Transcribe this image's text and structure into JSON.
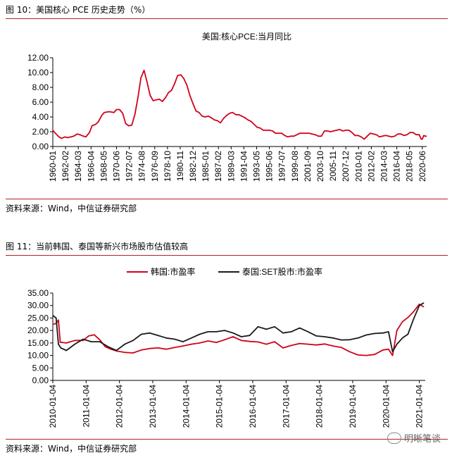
{
  "fig10": {
    "header": "图 10：美国核心 PCE 历史走势（%）",
    "source": "资料来源：Wind，中信证券研究部"
  },
  "fig11": {
    "header": "图 11：当前韩国、泰国等新兴市场股市估值较高",
    "source": "资料来源：Wind，中信证券研究部"
  },
  "watermark": "明晰笔谈",
  "colors": {
    "red": "#d0021b",
    "black": "#1a1a1a",
    "rule": "#b22222"
  },
  "chart_data": [
    {
      "type": "line",
      "title": "美国:核心PCE:当月同比",
      "xlabel": "",
      "ylabel": "",
      "ylim": [
        0,
        12
      ],
      "yticks": [
        "0.00",
        "2.00",
        "4.00",
        "6.00",
        "8.00",
        "10.00",
        "12.00"
      ],
      "xticks": [
        "1960-01",
        "1962-02",
        "1964-03",
        "1966-04",
        "1968-05",
        "1970-06",
        "1972-07",
        "1974-08",
        "1976-09",
        "1978-10",
        "1980-11",
        "1982-12",
        "1985-01",
        "1987-02",
        "1989-03",
        "1991-04",
        "1993-05",
        "1995-06",
        "1997-07",
        "1999-08",
        "2001-09",
        "2003-10",
        "2005-11",
        "2007-12",
        "2010-01",
        "2012-02",
        "2014-03",
        "2016-04",
        "2018-05",
        "2020-06"
      ],
      "legend": "none",
      "series": [
        {
          "name": "",
          "color": "#d0021b",
          "points": [
            [
              "1960-01",
              2.2
            ],
            [
              "1960-06",
              1.8
            ],
            [
              "1961-01",
              1.3
            ],
            [
              "1961-06",
              1.1
            ],
            [
              "1962-01",
              1.3
            ],
            [
              "1962-06",
              1.2
            ],
            [
              "1963-01",
              1.3
            ],
            [
              "1963-06",
              1.4
            ],
            [
              "1964-01",
              1.7
            ],
            [
              "1964-06",
              1.6
            ],
            [
              "1965-01",
              1.4
            ],
            [
              "1965-06",
              1.3
            ],
            [
              "1966-01",
              1.9
            ],
            [
              "1966-06",
              2.8
            ],
            [
              "1967-01",
              3.0
            ],
            [
              "1967-06",
              3.3
            ],
            [
              "1968-01",
              4.2
            ],
            [
              "1968-06",
              4.6
            ],
            [
              "1969-01",
              4.7
            ],
            [
              "1969-06",
              4.7
            ],
            [
              "1970-01",
              4.6
            ],
            [
              "1970-06",
              5.0
            ],
            [
              "1970-12",
              5.0
            ],
            [
              "1971-06",
              4.5
            ],
            [
              "1971-12",
              3.1
            ],
            [
              "1972-06",
              2.8
            ],
            [
              "1972-12",
              2.9
            ],
            [
              "1973-06",
              4.3
            ],
            [
              "1973-12",
              6.6
            ],
            [
              "1974-06",
              9.3
            ],
            [
              "1974-12",
              10.3
            ],
            [
              "1975-06",
              8.7
            ],
            [
              "1975-12",
              6.9
            ],
            [
              "1976-06",
              6.2
            ],
            [
              "1976-12",
              6.3
            ],
            [
              "1977-06",
              6.4
            ],
            [
              "1977-12",
              6.1
            ],
            [
              "1978-06",
              6.6
            ],
            [
              "1978-12",
              7.3
            ],
            [
              "1979-06",
              7.6
            ],
            [
              "1979-12",
              8.5
            ],
            [
              "1980-06",
              9.6
            ],
            [
              "1980-12",
              9.7
            ],
            [
              "1981-06",
              9.2
            ],
            [
              "1981-12",
              8.3
            ],
            [
              "1982-06",
              6.9
            ],
            [
              "1982-12",
              5.8
            ],
            [
              "1983-06",
              4.8
            ],
            [
              "1983-12",
              4.6
            ],
            [
              "1984-06",
              4.1
            ],
            [
              "1984-12",
              4.0
            ],
            [
              "1985-06",
              4.1
            ],
            [
              "1985-12",
              3.9
            ],
            [
              "1986-06",
              3.6
            ],
            [
              "1986-12",
              3.5
            ],
            [
              "1987-06",
              3.2
            ],
            [
              "1987-12",
              3.8
            ],
            [
              "1988-06",
              4.2
            ],
            [
              "1988-12",
              4.5
            ],
            [
              "1989-06",
              4.6
            ],
            [
              "1989-12",
              4.3
            ],
            [
              "1990-06",
              4.3
            ],
            [
              "1990-12",
              4.1
            ],
            [
              "1991-06",
              3.9
            ],
            [
              "1991-12",
              3.6
            ],
            [
              "1992-06",
              3.4
            ],
            [
              "1992-12",
              3.0
            ],
            [
              "1993-06",
              2.6
            ],
            [
              "1993-12",
              2.5
            ],
            [
              "1994-06",
              2.2
            ],
            [
              "1994-12",
              2.2
            ],
            [
              "1995-06",
              2.2
            ],
            [
              "1995-12",
              2.1
            ],
            [
              "1996-06",
              1.8
            ],
            [
              "1996-12",
              1.8
            ],
            [
              "1997-06",
              1.8
            ],
            [
              "1997-12",
              1.5
            ],
            [
              "1998-06",
              1.3
            ],
            [
              "1998-12",
              1.4
            ],
            [
              "1999-06",
              1.4
            ],
            [
              "1999-12",
              1.6
            ],
            [
              "2000-06",
              1.8
            ],
            [
              "2000-12",
              1.8
            ],
            [
              "2001-06",
              1.8
            ],
            [
              "2001-12",
              1.8
            ],
            [
              "2002-06",
              1.7
            ],
            [
              "2002-12",
              1.6
            ],
            [
              "2003-06",
              1.4
            ],
            [
              "2003-12",
              1.4
            ],
            [
              "2004-06",
              2.1
            ],
            [
              "2004-12",
              2.1
            ],
            [
              "2005-06",
              2.0
            ],
            [
              "2005-12",
              2.1
            ],
            [
              "2006-06",
              2.2
            ],
            [
              "2006-12",
              2.3
            ],
            [
              "2007-06",
              2.1
            ],
            [
              "2007-12",
              2.2
            ],
            [
              "2008-06",
              2.2
            ],
            [
              "2008-12",
              1.9
            ],
            [
              "2009-06",
              1.5
            ],
            [
              "2009-12",
              1.5
            ],
            [
              "2010-06",
              1.3
            ],
            [
              "2010-12",
              1.0
            ],
            [
              "2011-06",
              1.4
            ],
            [
              "2011-12",
              1.8
            ],
            [
              "2012-06",
              1.7
            ],
            [
              "2012-12",
              1.6
            ],
            [
              "2013-06",
              1.3
            ],
            [
              "2013-12",
              1.4
            ],
            [
              "2014-06",
              1.5
            ],
            [
              "2014-12",
              1.4
            ],
            [
              "2015-06",
              1.3
            ],
            [
              "2015-12",
              1.4
            ],
            [
              "2016-06",
              1.7
            ],
            [
              "2016-12",
              1.7
            ],
            [
              "2017-06",
              1.5
            ],
            [
              "2017-12",
              1.6
            ],
            [
              "2018-06",
              1.9
            ],
            [
              "2018-12",
              1.9
            ],
            [
              "2019-06",
              1.6
            ],
            [
              "2019-12",
              1.6
            ],
            [
              "2020-04",
              1.0
            ],
            [
              "2020-06",
              1.0
            ],
            [
              "2020-09",
              1.5
            ],
            [
              "2020-12",
              1.4
            ],
            [
              "2021-02",
              1.4
            ]
          ]
        }
      ]
    },
    {
      "type": "line",
      "title": "",
      "xlabel": "",
      "ylabel": "",
      "ylim": [
        0,
        35
      ],
      "yticks": [
        "0.00",
        "5.00",
        "10.00",
        "15.00",
        "20.00",
        "25.00",
        "30.00",
        "35.00"
      ],
      "xticks": [
        "2010-01-04",
        "2011-01-04",
        "2012-01-04",
        "2013-01-04",
        "2014-01-04",
        "2015-01-04",
        "2016-01-04",
        "2017-01-04",
        "2018-01-04",
        "2019-01-04",
        "2020-01-04",
        "2021-01-04"
      ],
      "legend": "top-center",
      "series": [
        {
          "name": "韩国:市盈率",
          "color": "#d0021b",
          "points": [
            [
              "2010-01-04",
              22.5
            ],
            [
              "2010-02-10",
              22.8
            ],
            [
              "2010-03-05",
              24.2
            ],
            [
              "2010-03-25",
              15.3
            ],
            [
              "2010-06-01",
              15.0
            ],
            [
              "2010-09-01",
              16.0
            ],
            [
              "2010-12-01",
              16.0
            ],
            [
              "2011-02-01",
              17.8
            ],
            [
              "2011-04-01",
              18.3
            ],
            [
              "2011-06-01",
              16.3
            ],
            [
              "2011-08-01",
              13.5
            ],
            [
              "2011-10-01",
              12.5
            ],
            [
              "2011-12-01",
              11.8
            ],
            [
              "2012-03-01",
              11.2
            ],
            [
              "2012-06-01",
              11.0
            ],
            [
              "2012-09-01",
              12.2
            ],
            [
              "2012-12-01",
              12.8
            ],
            [
              "2013-03-01",
              13.0
            ],
            [
              "2013-06-01",
              12.5
            ],
            [
              "2013-09-01",
              13.2
            ],
            [
              "2013-12-01",
              13.8
            ],
            [
              "2014-03-01",
              14.5
            ],
            [
              "2014-06-01",
              15.0
            ],
            [
              "2014-09-01",
              15.8
            ],
            [
              "2014-12-01",
              15.2
            ],
            [
              "2015-03-01",
              16.3
            ],
            [
              "2015-06-01",
              17.5
            ],
            [
              "2015-09-01",
              16.0
            ],
            [
              "2015-12-01",
              15.6
            ],
            [
              "2016-03-01",
              15.4
            ],
            [
              "2016-06-01",
              14.5
            ],
            [
              "2016-09-01",
              15.5
            ],
            [
              "2016-12-01",
              13.0
            ],
            [
              "2017-03-01",
              14.0
            ],
            [
              "2017-06-01",
              14.8
            ],
            [
              "2017-09-01",
              14.5
            ],
            [
              "2017-12-01",
              14.2
            ],
            [
              "2018-03-01",
              14.6
            ],
            [
              "2018-06-01",
              13.8
            ],
            [
              "2018-09-01",
              13.2
            ],
            [
              "2018-12-01",
              11.5
            ],
            [
              "2019-03-01",
              10.2
            ],
            [
              "2019-06-01",
              10.0
            ],
            [
              "2019-09-01",
              10.4
            ],
            [
              "2019-12-01",
              12.2
            ],
            [
              "2020-02-01",
              12.5
            ],
            [
              "2020-03-15",
              10.0
            ],
            [
              "2020-05-01",
              20.0
            ],
            [
              "2020-07-01",
              23.5
            ],
            [
              "2020-09-01",
              25.2
            ],
            [
              "2020-11-01",
              27.5
            ],
            [
              "2021-01-04",
              30.5
            ],
            [
              "2021-02-20",
              29.5
            ]
          ]
        },
        {
          "name": "泰国:SET股市:市盈率",
          "color": "#1a1a1a",
          "points": [
            [
              "2010-01-04",
              26.0
            ],
            [
              "2010-02-10",
              25.0
            ],
            [
              "2010-03-05",
              14.5
            ],
            [
              "2010-04-01",
              13.0
            ],
            [
              "2010-06-01",
              12.0
            ],
            [
              "2010-09-01",
              14.5
            ],
            [
              "2010-12-01",
              16.5
            ],
            [
              "2011-03-01",
              15.5
            ],
            [
              "2011-06-01",
              15.5
            ],
            [
              "2011-09-01",
              13.5
            ],
            [
              "2011-12-01",
              12.0
            ],
            [
              "2012-03-01",
              14.5
            ],
            [
              "2012-06-01",
              16.0
            ],
            [
              "2012-09-01",
              18.5
            ],
            [
              "2012-12-01",
              19.0
            ],
            [
              "2013-03-01",
              18.0
            ],
            [
              "2013-06-01",
              17.0
            ],
            [
              "2013-09-01",
              16.5
            ],
            [
              "2013-12-01",
              15.5
            ],
            [
              "2014-03-01",
              17.0
            ],
            [
              "2014-06-01",
              18.5
            ],
            [
              "2014-09-01",
              19.5
            ],
            [
              "2014-12-01",
              19.5
            ],
            [
              "2015-03-01",
              20.0
            ],
            [
              "2015-06-01",
              19.0
            ],
            [
              "2015-09-01",
              17.5
            ],
            [
              "2015-12-01",
              18.0
            ],
            [
              "2016-03-01",
              21.5
            ],
            [
              "2016-06-01",
              20.5
            ],
            [
              "2016-09-01",
              21.5
            ],
            [
              "2016-12-01",
              19.0
            ],
            [
              "2017-03-01",
              19.5
            ],
            [
              "2017-06-01",
              21.0
            ],
            [
              "2017-09-01",
              19.5
            ],
            [
              "2017-12-01",
              17.8
            ],
            [
              "2018-03-01",
              17.5
            ],
            [
              "2018-06-01",
              17.0
            ],
            [
              "2018-09-01",
              16.2
            ],
            [
              "2018-12-01",
              16.3
            ],
            [
              "2019-03-01",
              17.0
            ],
            [
              "2019-06-01",
              18.2
            ],
            [
              "2019-09-01",
              18.8
            ],
            [
              "2019-12-01",
              19.0
            ],
            [
              "2020-02-01",
              19.5
            ],
            [
              "2020-03-15",
              11.5
            ],
            [
              "2020-05-01",
              14.5
            ],
            [
              "2020-07-01",
              17.0
            ],
            [
              "2020-09-01",
              18.5
            ],
            [
              "2020-11-01",
              24.5
            ],
            [
              "2021-01-04",
              30.0
            ],
            [
              "2021-02-20",
              31.0
            ]
          ]
        }
      ]
    }
  ]
}
